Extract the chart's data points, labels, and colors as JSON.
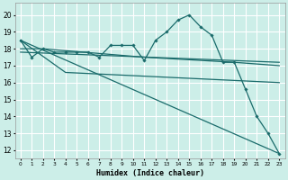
{
  "title": "",
  "xlabel": "Humidex (Indice chaleur)",
  "xlim": [
    -0.5,
    23.5
  ],
  "ylim": [
    11.5,
    20.7
  ],
  "yticks": [
    12,
    13,
    14,
    15,
    16,
    17,
    18,
    19,
    20
  ],
  "xticks": [
    0,
    1,
    2,
    3,
    4,
    5,
    6,
    7,
    8,
    9,
    10,
    11,
    12,
    13,
    14,
    15,
    16,
    17,
    18,
    19,
    20,
    21,
    22,
    23
  ],
  "background_color": "#cceee8",
  "grid_color": "#ffffff",
  "line_color": "#1a6b6b",
  "lines": [
    {
      "x": [
        0,
        1,
        2,
        3,
        4,
        5,
        6,
        7,
        8,
        9,
        10,
        11,
        12,
        13,
        14,
        15,
        16,
        17,
        18,
        19,
        20,
        21,
        22,
        23
      ],
      "y": [
        18.5,
        17.5,
        18.0,
        17.8,
        17.8,
        17.8,
        17.8,
        17.5,
        18.2,
        18.2,
        18.2,
        17.3,
        18.5,
        19.0,
        19.7,
        20.0,
        19.3,
        18.8,
        17.2,
        17.2,
        15.6,
        14.0,
        13.0,
        11.8
      ],
      "has_marker": true
    },
    {
      "x": [
        0,
        23
      ],
      "y": [
        17.8,
        17.2
      ],
      "has_marker": false
    },
    {
      "x": [
        0,
        23
      ],
      "y": [
        18.5,
        11.8
      ],
      "has_marker": false
    },
    {
      "x": [
        0,
        4,
        23
      ],
      "y": [
        18.5,
        16.6,
        16.0
      ],
      "has_marker": false
    },
    {
      "x": [
        0,
        2,
        11,
        19,
        23
      ],
      "y": [
        18.0,
        18.0,
        17.5,
        17.2,
        17.0
      ],
      "has_marker": false
    }
  ]
}
